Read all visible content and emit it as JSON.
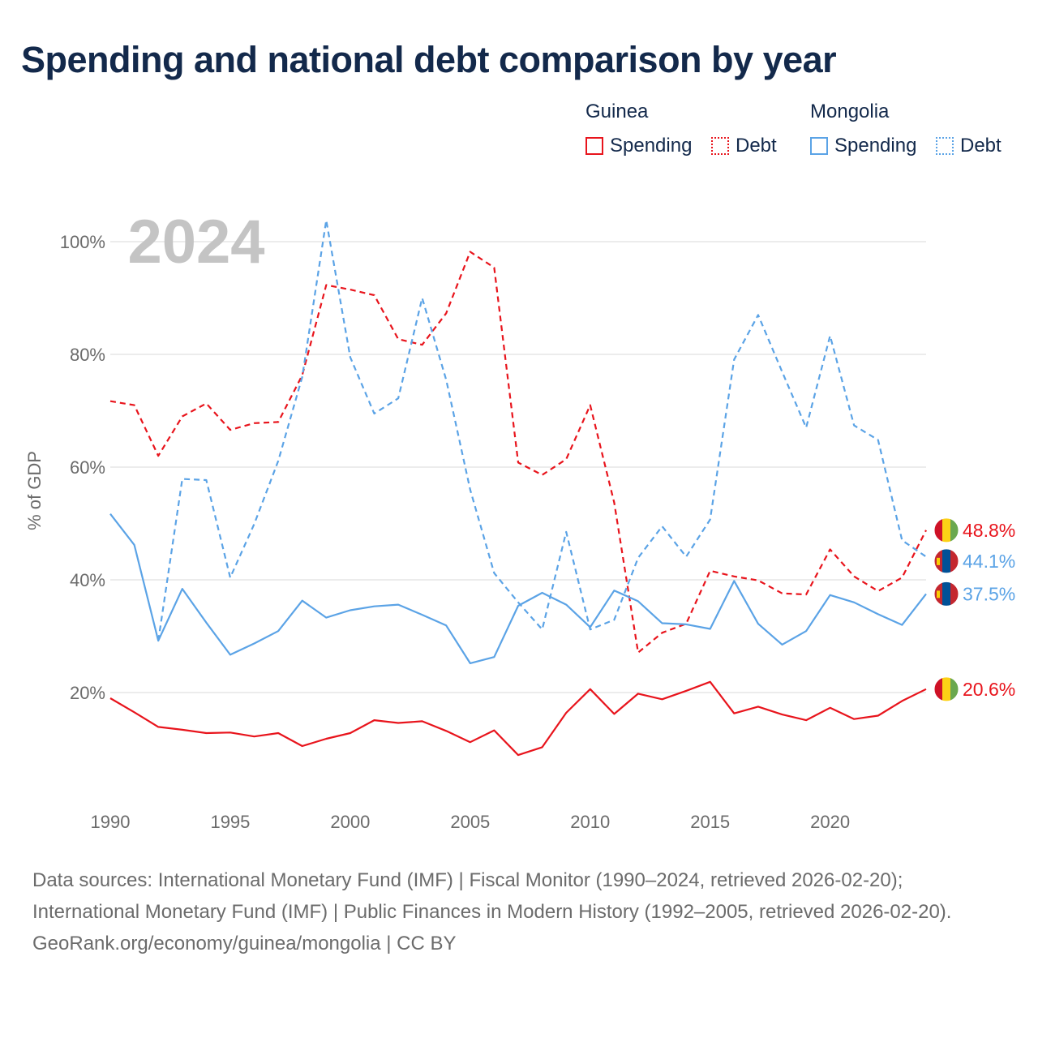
{
  "title": "Spending and national debt comparison by year",
  "legend": {
    "groups": [
      {
        "name": "Guinea",
        "spending_label": "Spending",
        "debt_label": "Debt"
      },
      {
        "name": "Mongolia",
        "spending_label": "Spending",
        "debt_label": "Debt"
      }
    ]
  },
  "chart_data": {
    "type": "line",
    "title": "Spending and national debt comparison by year",
    "year_watermark": "2024",
    "ylabel": "% of GDP",
    "xlabel": "",
    "xlim": [
      1990,
      2024
    ],
    "ylim": [
      0,
      105
    ],
    "x_ticks": [
      "1990",
      "1995",
      "2000",
      "2005",
      "2010",
      "2015",
      "2020"
    ],
    "y_ticks": [
      {
        "value": 20,
        "label": "20%"
      },
      {
        "value": 40,
        "label": "40%"
      },
      {
        "value": 60,
        "label": "60%"
      },
      {
        "value": 80,
        "label": "80%"
      },
      {
        "value": 100,
        "label": "100%"
      }
    ],
    "colors": {
      "guinea": "#e8141c",
      "mongolia": "#5ba3e6"
    },
    "series": [
      {
        "name": "Guinea Spending",
        "country": "guinea",
        "style": "solid",
        "end_label": "20.6%",
        "x": [
          1990,
          1991,
          1992,
          1993,
          1994,
          1995,
          1996,
          1997,
          1998,
          1999,
          2000,
          2001,
          2002,
          2003,
          2004,
          2005,
          2006,
          2007,
          2008,
          2009,
          2010,
          2011,
          2012,
          2013,
          2014,
          2015,
          2016,
          2017,
          2018,
          2019,
          2020,
          2021,
          2022,
          2023,
          2024
        ],
        "values": [
          19.0,
          16.5,
          13.9,
          13.4,
          12.8,
          12.9,
          12.2,
          12.8,
          10.5,
          11.8,
          12.8,
          15.1,
          14.6,
          14.9,
          13.2,
          11.2,
          13.3,
          8.9,
          10.3,
          16.4,
          20.6,
          16.2,
          19.8,
          18.8,
          20.3,
          21.9,
          16.3,
          17.5,
          16.1,
          15.1,
          17.3,
          15.3,
          15.9,
          18.5,
          20.6
        ]
      },
      {
        "name": "Guinea Debt",
        "country": "guinea",
        "style": "dashed",
        "end_label": "48.8%",
        "x": [
          1990,
          1991,
          1992,
          1993,
          1994,
          1995,
          1996,
          1997,
          1998,
          1999,
          2000,
          2001,
          2002,
          2003,
          2004,
          2005,
          2006,
          2007,
          2008,
          2009,
          2010,
          2011,
          2012,
          2013,
          2014,
          2015,
          2016,
          2017,
          2018,
          2019,
          2020,
          2021,
          2022,
          2023,
          2024
        ],
        "values": [
          71.7,
          71.0,
          62.0,
          69.0,
          71.3,
          66.6,
          67.8,
          68.0,
          76.3,
          92.3,
          91.5,
          90.5,
          82.7,
          81.7,
          87.3,
          98.2,
          95.4,
          60.8,
          58.6,
          61.4,
          71.0,
          53.7,
          27.1,
          30.6,
          32.2,
          41.6,
          40.6,
          39.9,
          37.6,
          37.4,
          45.4,
          40.6,
          38.0,
          40.4,
          48.8
        ]
      },
      {
        "name": "Mongolia Spending",
        "country": "mongolia",
        "style": "solid",
        "end_label": "37.5%",
        "x": [
          1990,
          1991,
          1992,
          1993,
          1994,
          1995,
          1996,
          1997,
          1998,
          1999,
          2000,
          2001,
          2002,
          2003,
          2004,
          2005,
          2006,
          2007,
          2008,
          2009,
          2010,
          2011,
          2012,
          2013,
          2014,
          2015,
          2016,
          2017,
          2018,
          2019,
          2020,
          2021,
          2022,
          2023,
          2024
        ],
        "values": [
          51.7,
          46.2,
          29.2,
          38.4,
          32.4,
          26.7,
          28.7,
          30.9,
          36.3,
          33.3,
          34.6,
          35.3,
          35.6,
          33.8,
          31.9,
          25.2,
          26.3,
          35.4,
          37.7,
          35.6,
          31.6,
          38.1,
          36.2,
          32.3,
          32.1,
          31.3,
          39.8,
          32.2,
          28.5,
          30.9,
          37.3,
          36.0,
          33.9,
          32.0,
          37.5
        ]
      },
      {
        "name": "Mongolia Debt",
        "country": "mongolia",
        "style": "dashed",
        "end_label": "44.1%",
        "x": [
          1990,
          1991,
          1992,
          1993,
          1994,
          1995,
          1996,
          1997,
          1998,
          1999,
          2000,
          2001,
          2002,
          2003,
          2004,
          2005,
          2006,
          2007,
          2008,
          2009,
          2010,
          2011,
          2012,
          2013,
          2014,
          2015,
          2016,
          2017,
          2018,
          2019,
          2020,
          2021,
          2022,
          2023,
          2024
        ],
        "values": [
          null,
          null,
          29.2,
          57.9,
          57.7,
          40.4,
          49.9,
          61.1,
          76.0,
          103.8,
          79.5,
          69.5,
          72.2,
          90.0,
          75.5,
          56.0,
          41.2,
          36.0,
          31.2,
          48.5,
          31.2,
          32.9,
          43.9,
          49.5,
          44.1,
          50.7,
          79.1,
          87.0,
          76.9,
          67.0,
          83.3,
          67.4,
          64.8,
          47.0,
          44.1
        ]
      }
    ]
  },
  "footer": {
    "sources": "Data sources: International Monetary Fund (IMF) | Fiscal Monitor (1990–2024, retrieved 2026-02-20); International Monetary Fund (IMF) | Public Finances in Modern History (1992–2005, retrieved 2026-02-20).",
    "credit": "GeoRank.org/economy/guinea/mongolia | CC BY"
  }
}
